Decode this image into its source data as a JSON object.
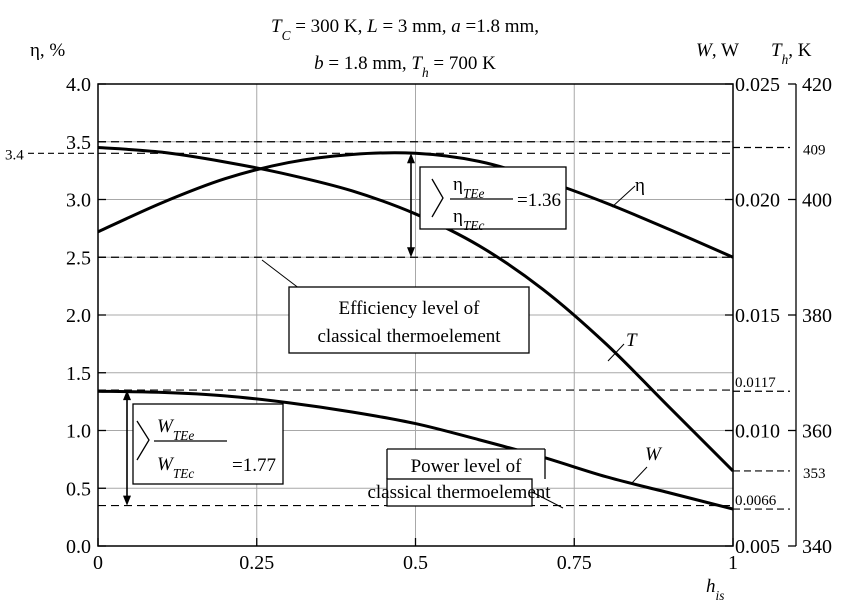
{
  "chart_data": {
    "type": "line",
    "title_lines": [
      {
        "parts": [
          {
            "t": "T",
            "i": true
          },
          {
            "t": "C",
            "sub": true
          },
          {
            "t": " = 300 K, "
          },
          {
            "t": "L",
            "i": true
          },
          {
            "t": " = 3 mm, "
          },
          {
            "t": "a",
            "i": true
          },
          {
            "t": " =1.8 mm,"
          }
        ]
      },
      {
        "parts": [
          {
            "t": "b",
            "i": true
          },
          {
            "t": " = 1.8 mm, "
          },
          {
            "t": "T",
            "i": true
          },
          {
            "t": "h",
            "sub": true
          },
          {
            "t": " = 700 K"
          }
        ]
      }
    ],
    "xlabel": {
      "main": "h",
      "sub": "is"
    },
    "ylabel_left": "η, %",
    "ylabel_right_W": {
      "main": "W",
      "rest": ", W"
    },
    "ylabel_right_T": {
      "main": "T",
      "sub": "h",
      "rest": ", K"
    },
    "x": {
      "lim": [
        0,
        1
      ],
      "ticks": [
        0,
        0.25,
        0.5,
        0.75,
        1
      ],
      "tick_labels": [
        "0",
        "0.25",
        "0.5",
        "0.75",
        "1"
      ]
    },
    "y_left": {
      "lim": [
        0,
        4
      ],
      "ticks": [
        0,
        0.5,
        1,
        1.5,
        2,
        2.5,
        3,
        3.5,
        4
      ],
      "tick_labels": [
        "0.0",
        "0.5",
        "1.0",
        "1.5",
        "2.0",
        "2.5",
        "3.0",
        "3.5",
        "4.0"
      ],
      "extra_label": {
        "value": 3.4,
        "text": "3.4"
      }
    },
    "y_right_W": {
      "lim": [
        0.005,
        0.025
      ],
      "major": [
        0.005,
        0.01,
        0.015,
        0.02,
        0.025
      ],
      "major_labels": [
        "0.005",
        "0.010",
        "0.015",
        "0.020",
        "0.025"
      ],
      "minor": [
        {
          "value": 0.0117,
          "text": "0.0117"
        },
        {
          "value": 0.0066,
          "text": "0.0066"
        }
      ]
    },
    "y_right_T": {
      "lim": [
        340,
        420
      ],
      "major": [
        340,
        360,
        380,
        400,
        420
      ],
      "major_labels": [
        "340",
        "360",
        "380",
        "400",
        "420"
      ],
      "minor": [
        {
          "value": 409,
          "text": "409"
        },
        {
          "value": 353,
          "text": "353"
        }
      ]
    },
    "grid": true,
    "series": [
      {
        "name": "η",
        "axis": "left",
        "x": [
          0,
          0.1,
          0.2,
          0.3,
          0.4,
          0.5,
          0.6,
          0.7,
          0.8,
          0.9,
          1
        ],
        "y": [
          2.72,
          2.97,
          3.18,
          3.32,
          3.39,
          3.4,
          3.33,
          3.17,
          2.97,
          2.74,
          2.5
        ]
      },
      {
        "name": "T",
        "axis": "T",
        "x": [
          0,
          0.1,
          0.2,
          0.3,
          0.4,
          0.5,
          0.6,
          0.7,
          0.8,
          0.9,
          1
        ],
        "y": [
          409,
          408.2,
          406.5,
          404.3,
          401.5,
          397.5,
          392,
          384.5,
          375,
          364,
          353
        ]
      },
      {
        "name": "W",
        "axis": "W",
        "x": [
          0,
          0.1,
          0.2,
          0.3,
          0.4,
          0.5,
          0.6,
          0.7,
          0.8,
          0.9,
          1
        ],
        "y": [
          0.0117,
          0.01165,
          0.0115,
          0.0112,
          0.0108,
          0.0103,
          0.0096,
          0.00885,
          0.008,
          0.0073,
          0.0066
        ]
      }
    ],
    "reference_lines_left": [
      3.5,
      3.4,
      2.5,
      1.35,
      0.35
    ],
    "annotations": {
      "eta_ratio": {
        "num": "η",
        "num_sub": "TEe",
        "den": "η",
        "den_sub": "TEc",
        "value": "=1.36"
      },
      "w_ratio": {
        "num": "W",
        "num_sub": "TEe",
        "den": "W",
        "den_sub": "TEc",
        "value": "=1.77"
      },
      "efficiency_box": [
        "Efficiency level of",
        "classical thermoelement"
      ],
      "power_box": [
        "Power level of",
        "classical thermoelement"
      ],
      "curve_labels": {
        "eta": "η",
        "T": "T",
        "W": "W"
      }
    }
  }
}
